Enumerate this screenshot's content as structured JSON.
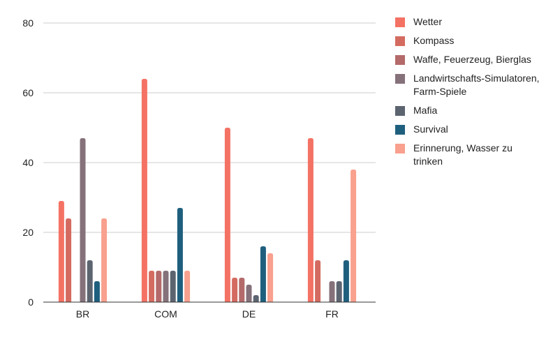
{
  "chart_data": {
    "type": "bar",
    "title": "",
    "xlabel": "",
    "ylabel": "",
    "categories": [
      "BR",
      "COM",
      "DE",
      "FR"
    ],
    "ylim": [
      0,
      80
    ],
    "yticks": [
      0,
      20,
      40,
      60,
      80
    ],
    "grid": true,
    "legend_position": "right",
    "series": [
      {
        "name": "Wetter",
        "color": "#f47264",
        "values": [
          29,
          64,
          50,
          47
        ]
      },
      {
        "name": "Kompass",
        "color": "#d46b60",
        "values": [
          24,
          9,
          7,
          12
        ]
      },
      {
        "name": "Waffe, Feuerzeug, Bierglas",
        "color": "#b46a6a",
        "values": [
          0,
          9,
          7,
          0
        ]
      },
      {
        "name": "Landwirtschafts-Simulatoren, Farm-Spiele",
        "color": "#85717a",
        "values": [
          47,
          9,
          5,
          6
        ]
      },
      {
        "name": "Mafia",
        "color": "#5c6470",
        "values": [
          12,
          9,
          2,
          6
        ]
      },
      {
        "name": "Survival",
        "color": "#1f5f7e",
        "values": [
          6,
          27,
          16,
          12
        ]
      },
      {
        "name": "Erinnerung, Wasser zu trinken",
        "color": "#f9a08e",
        "values": [
          24,
          9,
          14,
          38
        ]
      }
    ]
  }
}
